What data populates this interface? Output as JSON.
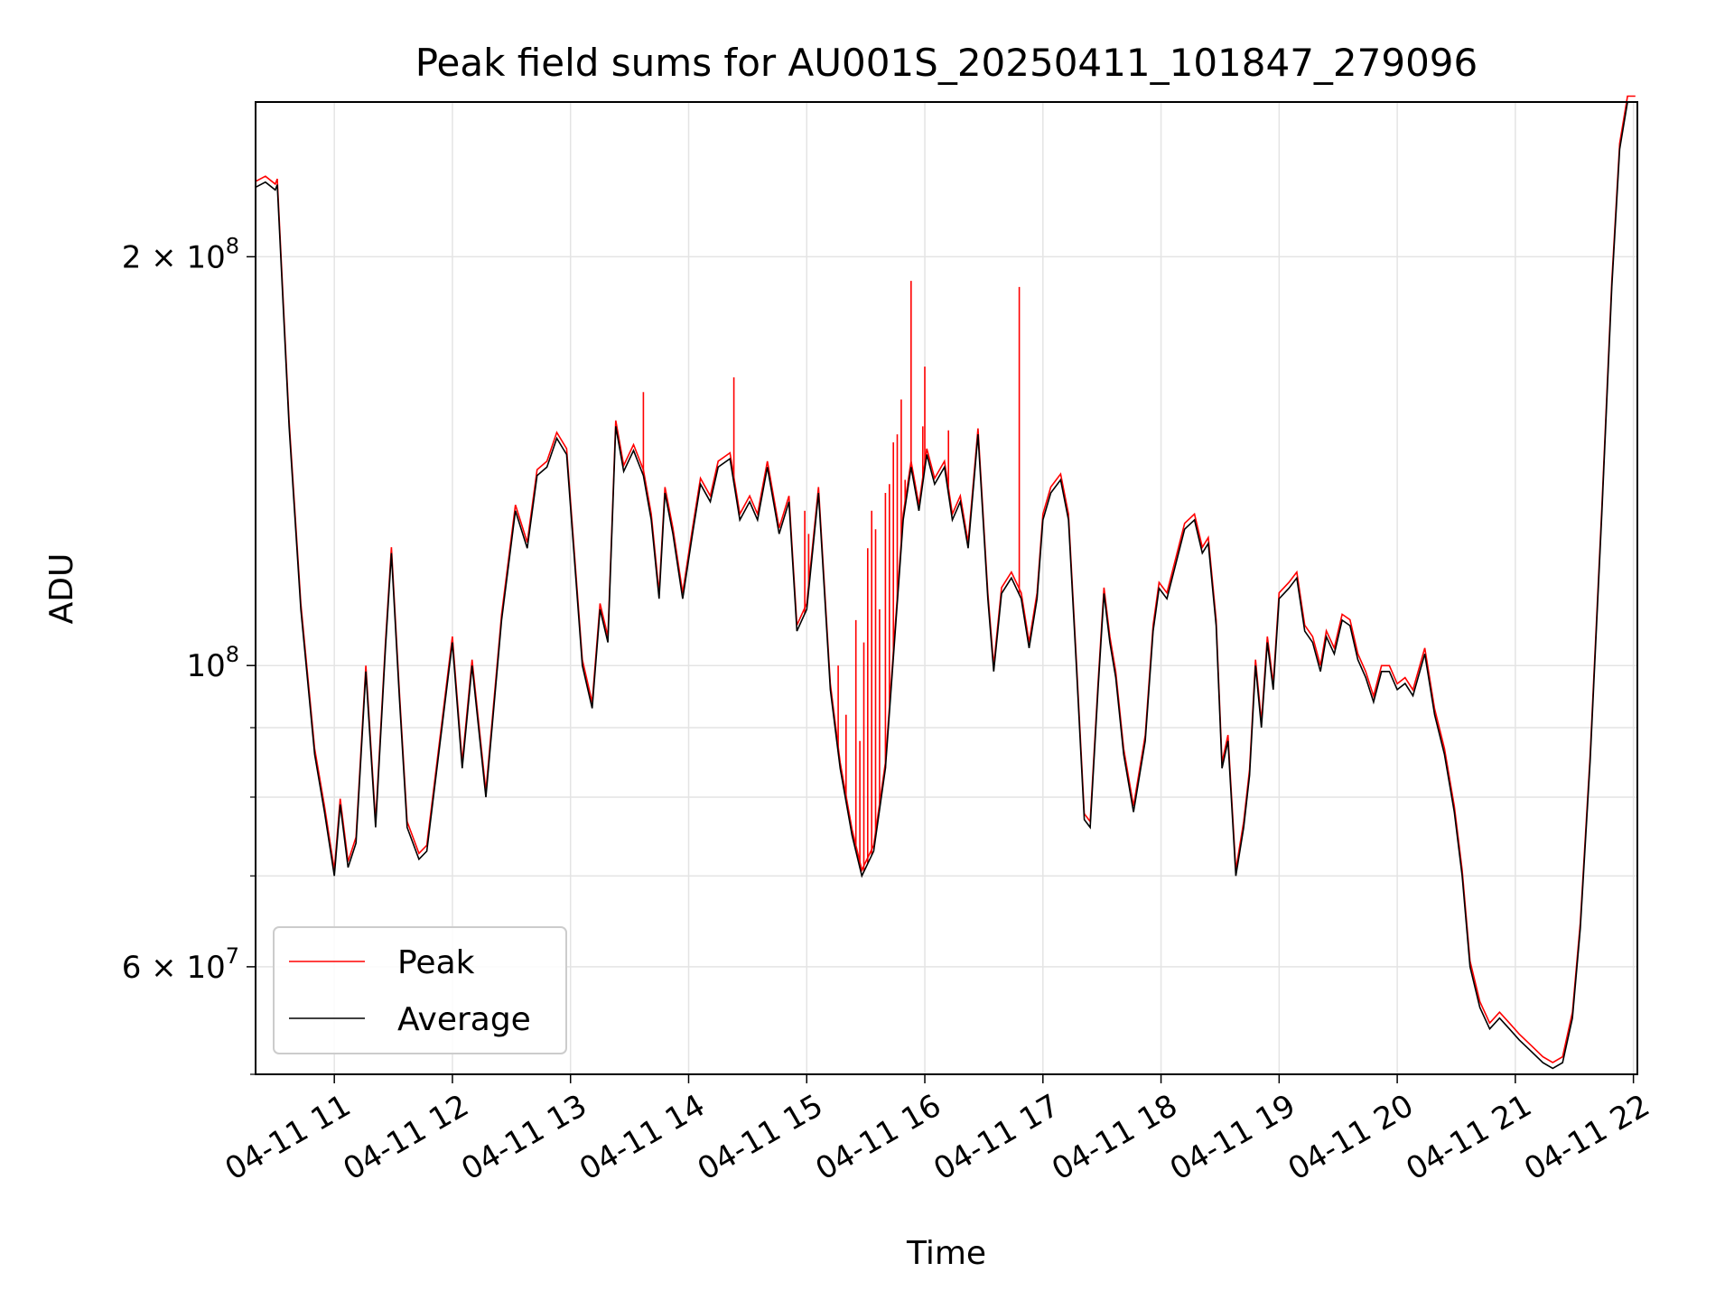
{
  "chart_data": {
    "type": "line",
    "title": "Peak field sums for AU001S_20250411_101847_279096",
    "xlabel": "Time",
    "ylabel": "ADU",
    "y_scale": "log",
    "ylim": [
      50000000,
      260000000
    ],
    "xlim": [
      "04-11 10:20",
      "04-11 22:02"
    ],
    "x_ticks": [
      "04-11 11",
      "04-11 12",
      "04-11 13",
      "04-11 14",
      "04-11 15",
      "04-11 16",
      "04-11 17",
      "04-11 18",
      "04-11 19",
      "04-11 20",
      "04-11 21",
      "04-11 22"
    ],
    "y_major_ticks": [
      {
        "value": 200000000,
        "mantissa": "2",
        "exp": "8"
      },
      {
        "value": 100000000,
        "mantissa": "",
        "exp": "8"
      },
      {
        "value": 60000000,
        "mantissa": "6",
        "exp": "7"
      }
    ],
    "y_minor_ticks": [
      70000000,
      80000000,
      90000000,
      50000000
    ],
    "grid": true,
    "legend_position": "lower-left",
    "series": [
      {
        "name": "Average",
        "color": "#000000",
        "points": [
          [
            "04-11 10:20",
            225
          ],
          [
            "04-11 10:25",
            227
          ],
          [
            "04-11 10:30",
            224
          ],
          [
            "04-11 10:31",
            226
          ],
          [
            "04-11 10:37",
            150
          ],
          [
            "04-11 10:43",
            110
          ],
          [
            "04-11 10:50",
            86
          ],
          [
            "04-11 10:55",
            78
          ],
          [
            "04-11 11:00",
            70
          ],
          [
            "04-11 11:03",
            79
          ],
          [
            "04-11 11:07",
            71
          ],
          [
            "04-11 11:11",
            74
          ],
          [
            "04-11 11:16",
            99
          ],
          [
            "04-11 11:21",
            76
          ],
          [
            "04-11 11:26",
            103
          ],
          [
            "04-11 11:29",
            121
          ],
          [
            "04-11 11:33",
            95
          ],
          [
            "04-11 11:37",
            76
          ],
          [
            "04-11 11:43",
            72
          ],
          [
            "04-11 11:47",
            73
          ],
          [
            "04-11 11:53",
            86
          ],
          [
            "04-11 12:00",
            104
          ],
          [
            "04-11 12:05",
            84
          ],
          [
            "04-11 12:10",
            100
          ],
          [
            "04-11 12:17",
            80
          ],
          [
            "04-11 12:25",
            108
          ],
          [
            "04-11 12:32",
            130
          ],
          [
            "04-11 12:38",
            122
          ],
          [
            "04-11 12:43",
            138
          ],
          [
            "04-11 12:48",
            140
          ],
          [
            "04-11 12:53",
            147
          ],
          [
            "04-11 12:58",
            143
          ],
          [
            "04-11 13:06",
            100
          ],
          [
            "04-11 13:11",
            93
          ],
          [
            "04-11 13:15",
            110
          ],
          [
            "04-11 13:19",
            104
          ],
          [
            "04-11 13:23",
            150
          ],
          [
            "04-11 13:27",
            139
          ],
          [
            "04-11 13:32",
            144
          ],
          [
            "04-11 13:37",
            138
          ],
          [
            "04-11 13:41",
            128
          ],
          [
            "04-11 13:45",
            112
          ],
          [
            "04-11 13:48",
            134
          ],
          [
            "04-11 13:52",
            125
          ],
          [
            "04-11 13:57",
            112
          ],
          [
            "04-11 14:02",
            125
          ],
          [
            "04-11 14:06",
            136
          ],
          [
            "04-11 14:11",
            132
          ],
          [
            "04-11 14:15",
            140
          ],
          [
            "04-11 14:21",
            142
          ],
          [
            "04-11 14:26",
            128
          ],
          [
            "04-11 14:31",
            132
          ],
          [
            "04-11 14:35",
            128
          ],
          [
            "04-11 14:40",
            140
          ],
          [
            "04-11 14:46",
            125
          ],
          [
            "04-11 14:51",
            132
          ],
          [
            "04-11 14:55",
            106
          ],
          [
            "04-11 15:00",
            110
          ],
          [
            "04-11 15:06",
            134
          ],
          [
            "04-11 15:12",
            96
          ],
          [
            "04-11 15:17",
            84
          ],
          [
            "04-11 15:23",
            75
          ],
          [
            "04-11 15:28",
            70
          ],
          [
            "04-11 15:34",
            73
          ],
          [
            "04-11 15:40",
            84
          ],
          [
            "04-11 15:45",
            106
          ],
          [
            "04-11 15:49",
            128
          ],
          [
            "04-11 15:53",
            140
          ],
          [
            "04-11 15:57",
            130
          ],
          [
            "04-11 16:01",
            143
          ],
          [
            "04-11 16:05",
            136
          ],
          [
            "04-11 16:10",
            140
          ],
          [
            "04-11 16:14",
            128
          ],
          [
            "04-11 16:18",
            132
          ],
          [
            "04-11 16:22",
            122
          ],
          [
            "04-11 16:27",
            148
          ],
          [
            "04-11 16:32",
            112
          ],
          [
            "04-11 16:35",
            99
          ],
          [
            "04-11 16:39",
            113
          ],
          [
            "04-11 16:44",
            116
          ],
          [
            "04-11 16:49",
            112
          ],
          [
            "04-11 16:53",
            103
          ],
          [
            "04-11 16:57",
            112
          ],
          [
            "04-11 17:00",
            128
          ],
          [
            "04-11 17:04",
            134
          ],
          [
            "04-11 17:09",
            137
          ],
          [
            "04-11 17:13",
            128
          ],
          [
            "04-11 17:17",
            100
          ],
          [
            "04-11 17:21",
            77
          ],
          [
            "04-11 17:24",
            76
          ],
          [
            "04-11 17:28",
            96
          ],
          [
            "04-11 17:31",
            113
          ],
          [
            "04-11 17:34",
            104
          ],
          [
            "04-11 17:37",
            98
          ],
          [
            "04-11 17:41",
            86
          ],
          [
            "04-11 17:46",
            78
          ],
          [
            "04-11 17:52",
            88
          ],
          [
            "04-11 17:56",
            106
          ],
          [
            "04-11 17:59",
            114
          ],
          [
            "04-11 18:03",
            112
          ],
          [
            "04-11 18:07",
            118
          ],
          [
            "04-11 18:12",
            126
          ],
          [
            "04-11 18:17",
            128
          ],
          [
            "04-11 18:21",
            121
          ],
          [
            "04-11 18:24",
            123
          ],
          [
            "04-11 18:28",
            107
          ],
          [
            "04-11 18:31",
            84
          ],
          [
            "04-11 18:34",
            88
          ],
          [
            "04-11 18:38",
            70
          ],
          [
            "04-11 18:42",
            76
          ],
          [
            "04-11 18:45",
            83
          ],
          [
            "04-11 18:48",
            100
          ],
          [
            "04-11 18:51",
            90
          ],
          [
            "04-11 18:54",
            104
          ],
          [
            "04-11 18:57",
            96
          ],
          [
            "04-11 19:00",
            112
          ],
          [
            "04-11 19:05",
            114
          ],
          [
            "04-11 19:09",
            116
          ],
          [
            "04-11 19:13",
            106
          ],
          [
            "04-11 19:17",
            104
          ],
          [
            "04-11 19:21",
            99
          ],
          [
            "04-11 19:24",
            105
          ],
          [
            "04-11 19:28",
            102
          ],
          [
            "04-11 19:32",
            108
          ],
          [
            "04-11 19:36",
            107
          ],
          [
            "04-11 19:40",
            101
          ],
          [
            "04-11 19:44",
            98
          ],
          [
            "04-11 19:48",
            94
          ],
          [
            "04-11 19:52",
            99
          ],
          [
            "04-11 19:56",
            99
          ],
          [
            "04-11 20:00",
            96
          ],
          [
            "04-11 20:04",
            97
          ],
          [
            "04-11 20:08",
            95
          ],
          [
            "04-11 20:14",
            102
          ],
          [
            "04-11 20:19",
            92
          ],
          [
            "04-11 20:24",
            86
          ],
          [
            "04-11 20:29",
            78
          ],
          [
            "04-11 20:33",
            70
          ],
          [
            "04-11 20:37",
            60
          ],
          [
            "04-11 20:42",
            56
          ],
          [
            "04-11 20:47",
            54
          ],
          [
            "04-11 20:52",
            55
          ],
          [
            "04-11 20:57",
            54
          ],
          [
            "04-11 21:02",
            53
          ],
          [
            "04-11 21:08",
            52
          ],
          [
            "04-11 21:14",
            51
          ],
          [
            "04-11 21:19",
            50.5
          ],
          [
            "04-11 21:24",
            51
          ],
          [
            "04-11 21:29",
            55
          ],
          [
            "04-11 21:33",
            64
          ],
          [
            "04-11 21:38",
            85
          ],
          [
            "04-11 21:44",
            130
          ],
          [
            "04-11 21:49",
            190
          ],
          [
            "04-11 21:53",
            240
          ],
          [
            "04-11 21:57",
            260
          ],
          [
            "04-11 22:01",
            260
          ]
        ]
      },
      {
        "name": "Peak",
        "color": "#ff0000",
        "spikes": [
          [
            "04-11 13:37",
            159
          ],
          [
            "04-11 14:23",
            163
          ],
          [
            "04-11 14:59",
            130
          ],
          [
            "04-11 15:01",
            125
          ],
          [
            "04-11 15:16",
            100
          ],
          [
            "04-11 15:20",
            92
          ],
          [
            "04-11 15:25",
            108
          ],
          [
            "04-11 15:27",
            88
          ],
          [
            "04-11 15:29",
            104
          ],
          [
            "04-11 15:31",
            122
          ],
          [
            "04-11 15:33",
            130
          ],
          [
            "04-11 15:35",
            126
          ],
          [
            "04-11 15:37",
            110
          ],
          [
            "04-11 15:40",
            134
          ],
          [
            "04-11 15:42",
            136
          ],
          [
            "04-11 15:44",
            146
          ],
          [
            "04-11 15:46",
            148
          ],
          [
            "04-11 15:48",
            157
          ],
          [
            "04-11 15:50",
            137
          ],
          [
            "04-11 15:53",
            192
          ],
          [
            "04-11 15:59",
            150
          ],
          [
            "04-11 16:00",
            166
          ],
          [
            "04-11 16:12",
            149
          ],
          [
            "04-11 16:48",
            190
          ]
        ]
      }
    ]
  }
}
